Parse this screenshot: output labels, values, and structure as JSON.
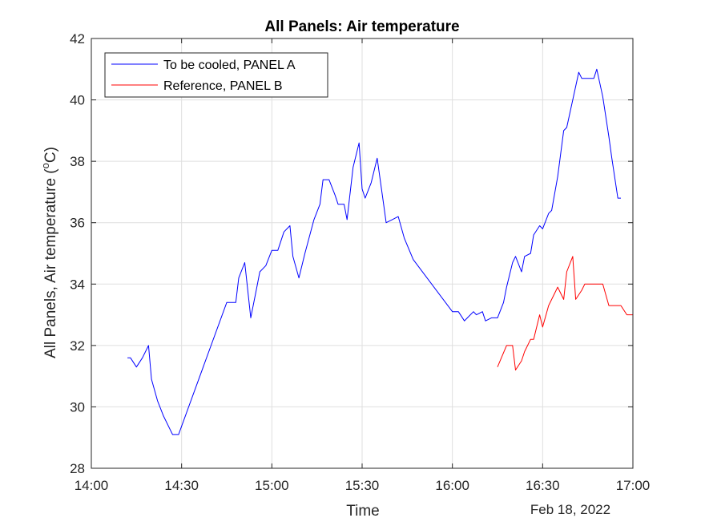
{
  "chart_data": {
    "type": "line",
    "title": "All Panels: Air temperature",
    "xlabel": "Time",
    "ylabel": "All Panels, Air temperature (",
    "ylabel_sup": "o",
    "ylabel_unit": "C)",
    "date_label": "Feb 18, 2022",
    "xlim": [
      "14:00",
      "17:00"
    ],
    "ylim": [
      28,
      42
    ],
    "x_ticks": [
      "14:00",
      "14:30",
      "15:00",
      "15:30",
      "16:00",
      "16:30",
      "17:00"
    ],
    "y_ticks": [
      28,
      30,
      32,
      34,
      36,
      38,
      40,
      42
    ],
    "grid": true,
    "legend_location": "top-left",
    "series": [
      {
        "name": "To be cooled, PANEL A",
        "color": "#0000ff",
        "x": [
          "14:12",
          "14:13",
          "14:15",
          "14:17",
          "14:19",
          "14:20",
          "14:22",
          "14:24",
          "14:26",
          "14:27",
          "14:29",
          "14:45",
          "14:48",
          "14:49",
          "14:51",
          "14:53",
          "14:55",
          "14:56",
          "14:58",
          "15:00",
          "15:02",
          "15:04",
          "15:06",
          "15:07",
          "15:09",
          "15:11",
          "15:14",
          "15:16",
          "15:17",
          "15:19",
          "15:21",
          "15:22",
          "15:24",
          "15:25",
          "15:27",
          "15:29",
          "15:30",
          "15:31",
          "15:33",
          "15:35",
          "15:37",
          "15:38",
          "15:40",
          "15:42",
          "15:44",
          "15:47",
          "16:00",
          "16:02",
          "16:04",
          "16:05",
          "16:07",
          "16:08",
          "16:10",
          "16:11",
          "16:13",
          "16:15",
          "16:17",
          "16:18",
          "16:20",
          "16:21",
          "16:23",
          "16:24",
          "16:26",
          "16:27",
          "16:29",
          "16:30",
          "16:32",
          "16:33",
          "16:35",
          "16:37",
          "16:38",
          "16:40",
          "16:42",
          "16:43",
          "16:44",
          "16:47",
          "16:48",
          "16:50",
          "16:52",
          "16:53",
          "16:55",
          "16:56"
        ],
        "y": [
          31.6,
          31.6,
          31.3,
          31.6,
          32.0,
          30.9,
          30.2,
          29.7,
          29.3,
          29.1,
          29.1,
          33.4,
          33.4,
          34.2,
          34.7,
          32.9,
          33.9,
          34.4,
          34.6,
          35.1,
          35.1,
          35.7,
          35.9,
          34.9,
          34.2,
          35.0,
          36.1,
          36.6,
          37.4,
          37.4,
          36.9,
          36.6,
          36.6,
          36.1,
          37.8,
          38.6,
          37.1,
          36.8,
          37.3,
          38.1,
          36.7,
          36.0,
          36.1,
          36.2,
          35.5,
          34.8,
          33.1,
          33.1,
          32.8,
          32.9,
          33.1,
          33.0,
          33.1,
          32.8,
          32.9,
          32.9,
          33.4,
          33.9,
          34.7,
          34.9,
          34.4,
          34.9,
          35.0,
          35.6,
          35.9,
          35.8,
          36.3,
          36.4,
          37.5,
          39.0,
          39.1,
          40.0,
          40.9,
          40.7,
          40.7,
          40.7,
          41.0,
          40.1,
          38.8,
          38.1,
          36.8,
          36.8
        ]
      },
      {
        "name": "Reference, PANEL B",
        "color": "#ff0000",
        "x": [
          "16:15",
          "16:18",
          "16:20",
          "16:21",
          "16:23",
          "16:24",
          "16:26",
          "16:27",
          "16:29",
          "16:30",
          "16:32",
          "16:33",
          "16:35",
          "16:37",
          "16:38",
          "16:40",
          "16:41",
          "16:43",
          "16:44",
          "16:46",
          "16:47",
          "16:49",
          "16:50",
          "16:52",
          "16:53",
          "16:55",
          "16:56",
          "16:58",
          "17:00"
        ],
        "y": [
          31.3,
          32.0,
          32.0,
          31.2,
          31.5,
          31.8,
          32.2,
          32.2,
          33.0,
          32.6,
          33.3,
          33.5,
          33.9,
          33.5,
          34.4,
          34.9,
          33.5,
          33.8,
          34.0,
          34.0,
          34.0,
          34.0,
          34.0,
          33.3,
          33.3,
          33.3,
          33.3,
          33.0,
          33.0
        ]
      }
    ]
  }
}
